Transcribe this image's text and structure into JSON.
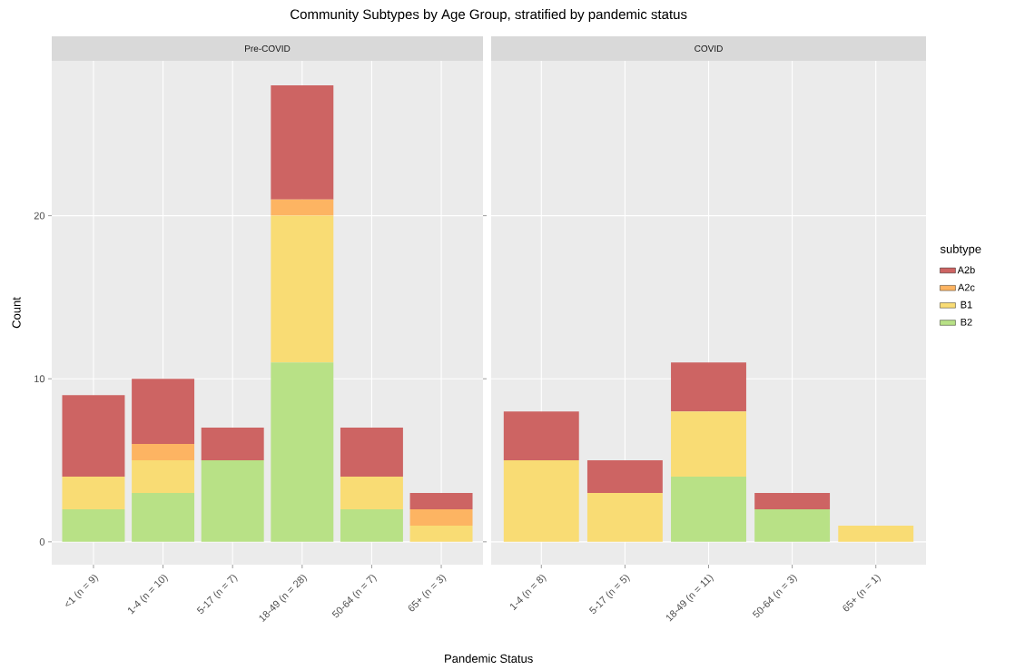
{
  "chart_data": [
    {
      "type": "bar",
      "stacked": true,
      "title": "Community Subtypes by Age Group, stratified by pandemic status",
      "subtitle": "Pre-COVID",
      "xlabel": "Pandemic Status",
      "ylabel": "Count",
      "categories": [
        "<1 (n = 9)",
        "1-4 (n = 10)",
        "5-17 (n = 7)",
        "18-49 (n = 28)",
        "50-64 (n = 7)",
        "65+ (n = 3)"
      ],
      "series": [
        {
          "color": "#b8e186",
          "values": [
            2,
            3,
            5,
            11,
            2,
            0
          ]
        },
        {
          "color": "#f9dc74",
          "values": [
            2,
            2,
            0,
            9,
            2,
            1
          ]
        },
        {
          "color": "#fdb462",
          "values": [
            0,
            1,
            0,
            1,
            0,
            1
          ]
        },
        {
          "color": "#cd6463",
          "values": [
            5,
            4,
            2,
            7,
            3,
            1
          ]
        }
      ],
      "ylim": [
        -1.4,
        29.5
      ],
      "yticks": [
        0,
        10,
        20
      ],
      "grid": true
    },
    {
      "type": "bar",
      "stacked": true,
      "subtitle": "COVID",
      "legend_title": "subtype",
      "categories": [
        "1-4 (n = 8)",
        "5-17 (n = 5)",
        "18-49 (n = 11)",
        "50-64 (n = 3)",
        "65+ (n = 1)"
      ],
      "series": [
        {
          "name": "B2",
          "color": "#b8e186",
          "values": [
            0,
            0,
            4,
            2,
            0
          ]
        },
        {
          "name": "B1",
          "color": "#f9dc74",
          "values": [
            5,
            3,
            4,
            0,
            1
          ]
        },
        {
          "name": "A2c",
          "color": "#fdb462",
          "values": [
            0,
            0,
            0,
            0,
            0
          ]
        },
        {
          "name": "A2b",
          "color": "#cd6463",
          "values": [
            3,
            2,
            3,
            1,
            0
          ]
        }
      ],
      "ylim": [
        -1.4,
        29.5
      ],
      "yticks": [
        0,
        10,
        20
      ],
      "grid": true,
      "legend": "right",
      "tick_labels": "x"
    }
  ]
}
